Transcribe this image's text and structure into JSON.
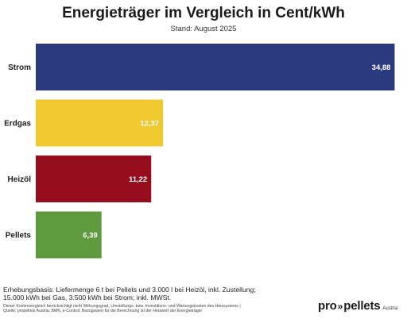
{
  "chart_data": {
    "type": "bar",
    "orientation": "horizontal",
    "title": "Energieträger im Vergleich in Cent/kWh",
    "subtitle": "Stand: August 2025",
    "categories": [
      "Strom",
      "Erdgas",
      "Heizöl",
      "Pellets"
    ],
    "values": [
      34.88,
      12.37,
      11.22,
      6.39
    ],
    "value_labels": [
      "34,88",
      "12,37",
      "11,22",
      "6,39"
    ],
    "colors": [
      "#2b3a80",
      "#f0c830",
      "#960d1e",
      "#5f9a3f"
    ],
    "xlim": [
      0,
      35
    ],
    "grid": false,
    "legend": "none"
  },
  "footnote": {
    "main_line1": "Erhebungsbasis: Liefermenge 6 t bei Pellets und 3.000 l bei Heizöl, inkl. Zustellung;",
    "main_line2": "15.000 kWh bei Gas, 3.500 kWh bei Strom; inkl. MWSt.",
    "small_line1": "Dieser Kostenvergleich berücksichtigt nicht Wirkungsgrad, Umstellungs- bzw. Investitions- und Wartungskosten des Heizsystems |",
    "small_line2": "Quelle: propellets Austria, BMK, e-Control. Bezugswert für die Berechnung ist der Heizwert der Energieträger"
  },
  "logo": {
    "text_left": "pro",
    "arrows": "»",
    "text_right": "pellets",
    "sub": "Austria"
  }
}
